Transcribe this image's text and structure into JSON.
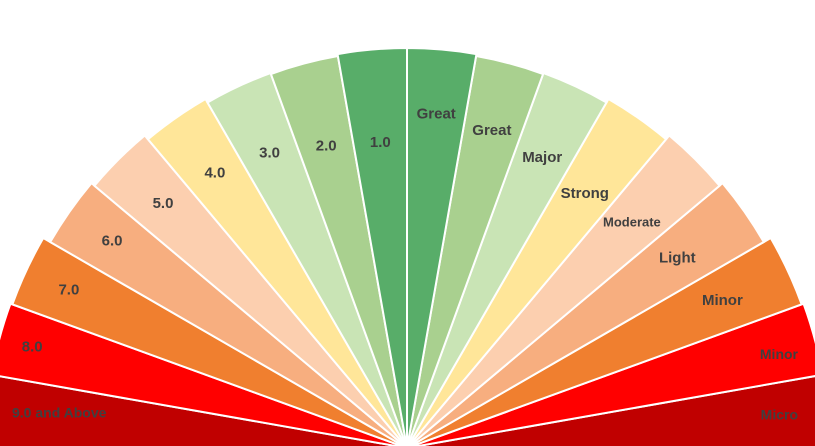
{
  "diagram": {
    "left_labels": [
      "9.0 and Above",
      "8.0",
      "7.0",
      "6.0",
      "5.0",
      "4.0",
      "3.0",
      "2.0",
      "1.0"
    ],
    "right_labels": [
      "Micro",
      "Minor",
      "Minor",
      "Light",
      "Moderate",
      "Strong",
      "Major",
      "Great",
      "Great"
    ],
    "colors": [
      "#C00000",
      "#FF0000",
      "#F07F2F",
      "#F7AE7F",
      "#FCCFAF",
      "#FFE699",
      "#C9E4B5",
      "#A9D08F",
      "#58AD69"
    ],
    "separator_color": "#ffffff",
    "label_color": "#404040"
  }
}
